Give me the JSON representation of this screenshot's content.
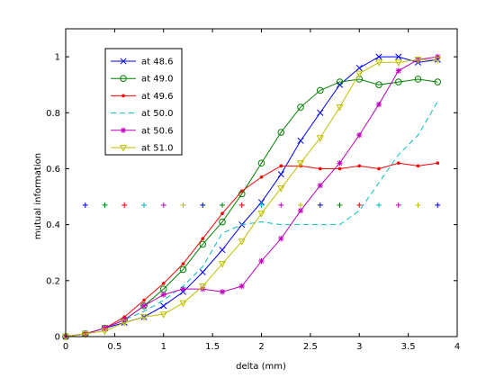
{
  "chart_data": {
    "type": "line",
    "title": "",
    "xlabel": "delta (mm)",
    "ylabel": "mutual information",
    "xlim": [
      0,
      4
    ],
    "ylim": [
      0,
      1.1
    ],
    "xticks": [
      0,
      0.5,
      1,
      1.5,
      2,
      2.5,
      3,
      3.5,
      4
    ],
    "xtick_labels": [
      "0",
      "0.5",
      "1",
      "1.5",
      "2",
      "2.5",
      "3",
      "3.5",
      "4"
    ],
    "yticks": [
      0,
      0.2,
      0.4,
      0.6,
      0.8,
      1
    ],
    "ytick_labels": [
      "0",
      "0.2",
      "0.4",
      "0.6",
      "0.8",
      "1"
    ],
    "grid": false,
    "legend_position": "top-left",
    "x": [
      0,
      0.2,
      0.4,
      0.6,
      0.8,
      1.0,
      1.2,
      1.4,
      1.6,
      1.8,
      2.0,
      2.2,
      2.4,
      2.6,
      2.8,
      3.0,
      3.2,
      3.4,
      3.6,
      3.8
    ],
    "series": [
      {
        "name": "at 48.6",
        "color": "#0000ff",
        "marker": "x",
        "dash": false,
        "values": [
          0,
          0.01,
          0.03,
          0.05,
          0.07,
          0.11,
          0.16,
          0.23,
          0.31,
          0.4,
          0.48,
          0.58,
          0.7,
          0.8,
          0.9,
          0.96,
          1.0,
          1.0,
          0.98,
          0.99
        ]
      },
      {
        "name": "at 49.0",
        "color": "#008000",
        "marker": "circle",
        "dash": false,
        "values": [
          0,
          0.01,
          0.03,
          0.06,
          0.11,
          0.17,
          0.24,
          0.33,
          0.41,
          0.51,
          0.62,
          0.73,
          0.82,
          0.88,
          0.91,
          0.92,
          0.9,
          0.91,
          0.92,
          0.91
        ]
      },
      {
        "name": "at 49.6",
        "color": "#ff0000",
        "marker": "dot",
        "dash": false,
        "values": [
          0,
          0.01,
          0.03,
          0.07,
          0.13,
          0.19,
          0.26,
          0.35,
          0.44,
          0.52,
          0.57,
          0.61,
          0.61,
          0.6,
          0.6,
          0.61,
          0.6,
          0.62,
          0.61,
          0.62
        ]
      },
      {
        "name": "at 50.0",
        "color": "#00bfbf",
        "marker": "none",
        "dash": true,
        "values": [
          0,
          0.01,
          0.03,
          0.06,
          0.09,
          0.13,
          0.18,
          0.25,
          0.37,
          0.4,
          0.41,
          0.4,
          0.4,
          0.4,
          0.4,
          0.45,
          0.55,
          0.65,
          0.72,
          0.84
        ]
      },
      {
        "name": "at 50.6",
        "color": "#bf00bf",
        "marker": "star",
        "dash": false,
        "values": [
          0,
          0.01,
          0.03,
          0.06,
          0.11,
          0.15,
          0.17,
          0.17,
          0.16,
          0.18,
          0.27,
          0.35,
          0.45,
          0.54,
          0.62,
          0.72,
          0.83,
          0.95,
          0.99,
          1.0
        ]
      },
      {
        "name": "at 51.0",
        "color": "#bfbf00",
        "marker": "triangle-down",
        "dash": false,
        "values": [
          0,
          0.01,
          0.02,
          0.05,
          0.07,
          0.08,
          0.12,
          0.18,
          0.26,
          0.34,
          0.44,
          0.53,
          0.62,
          0.71,
          0.82,
          0.94,
          0.98,
          0.98,
          0.99,
          0.99
        ]
      }
    ],
    "plus_markers": {
      "y": 0.47,
      "x": [
        0.2,
        0.4,
        0.6,
        0.8,
        1.0,
        1.2,
        1.4,
        1.6,
        1.8,
        2.0,
        2.2,
        2.4,
        2.6,
        2.8,
        3.0,
        3.2,
        3.4,
        3.6,
        3.8
      ],
      "colors": [
        "#0000ff",
        "#008000",
        "#ff0000",
        "#00bfbf",
        "#bf00bf",
        "#bfbf00",
        "#0000ff",
        "#008000",
        "#ff0000",
        "#00bfbf",
        "#bf00bf",
        "#bfbf00",
        "#0000ff",
        "#008000",
        "#ff0000",
        "#00bfbf",
        "#bf00bf",
        "#bfbf00",
        "#0000ff"
      ]
    }
  }
}
